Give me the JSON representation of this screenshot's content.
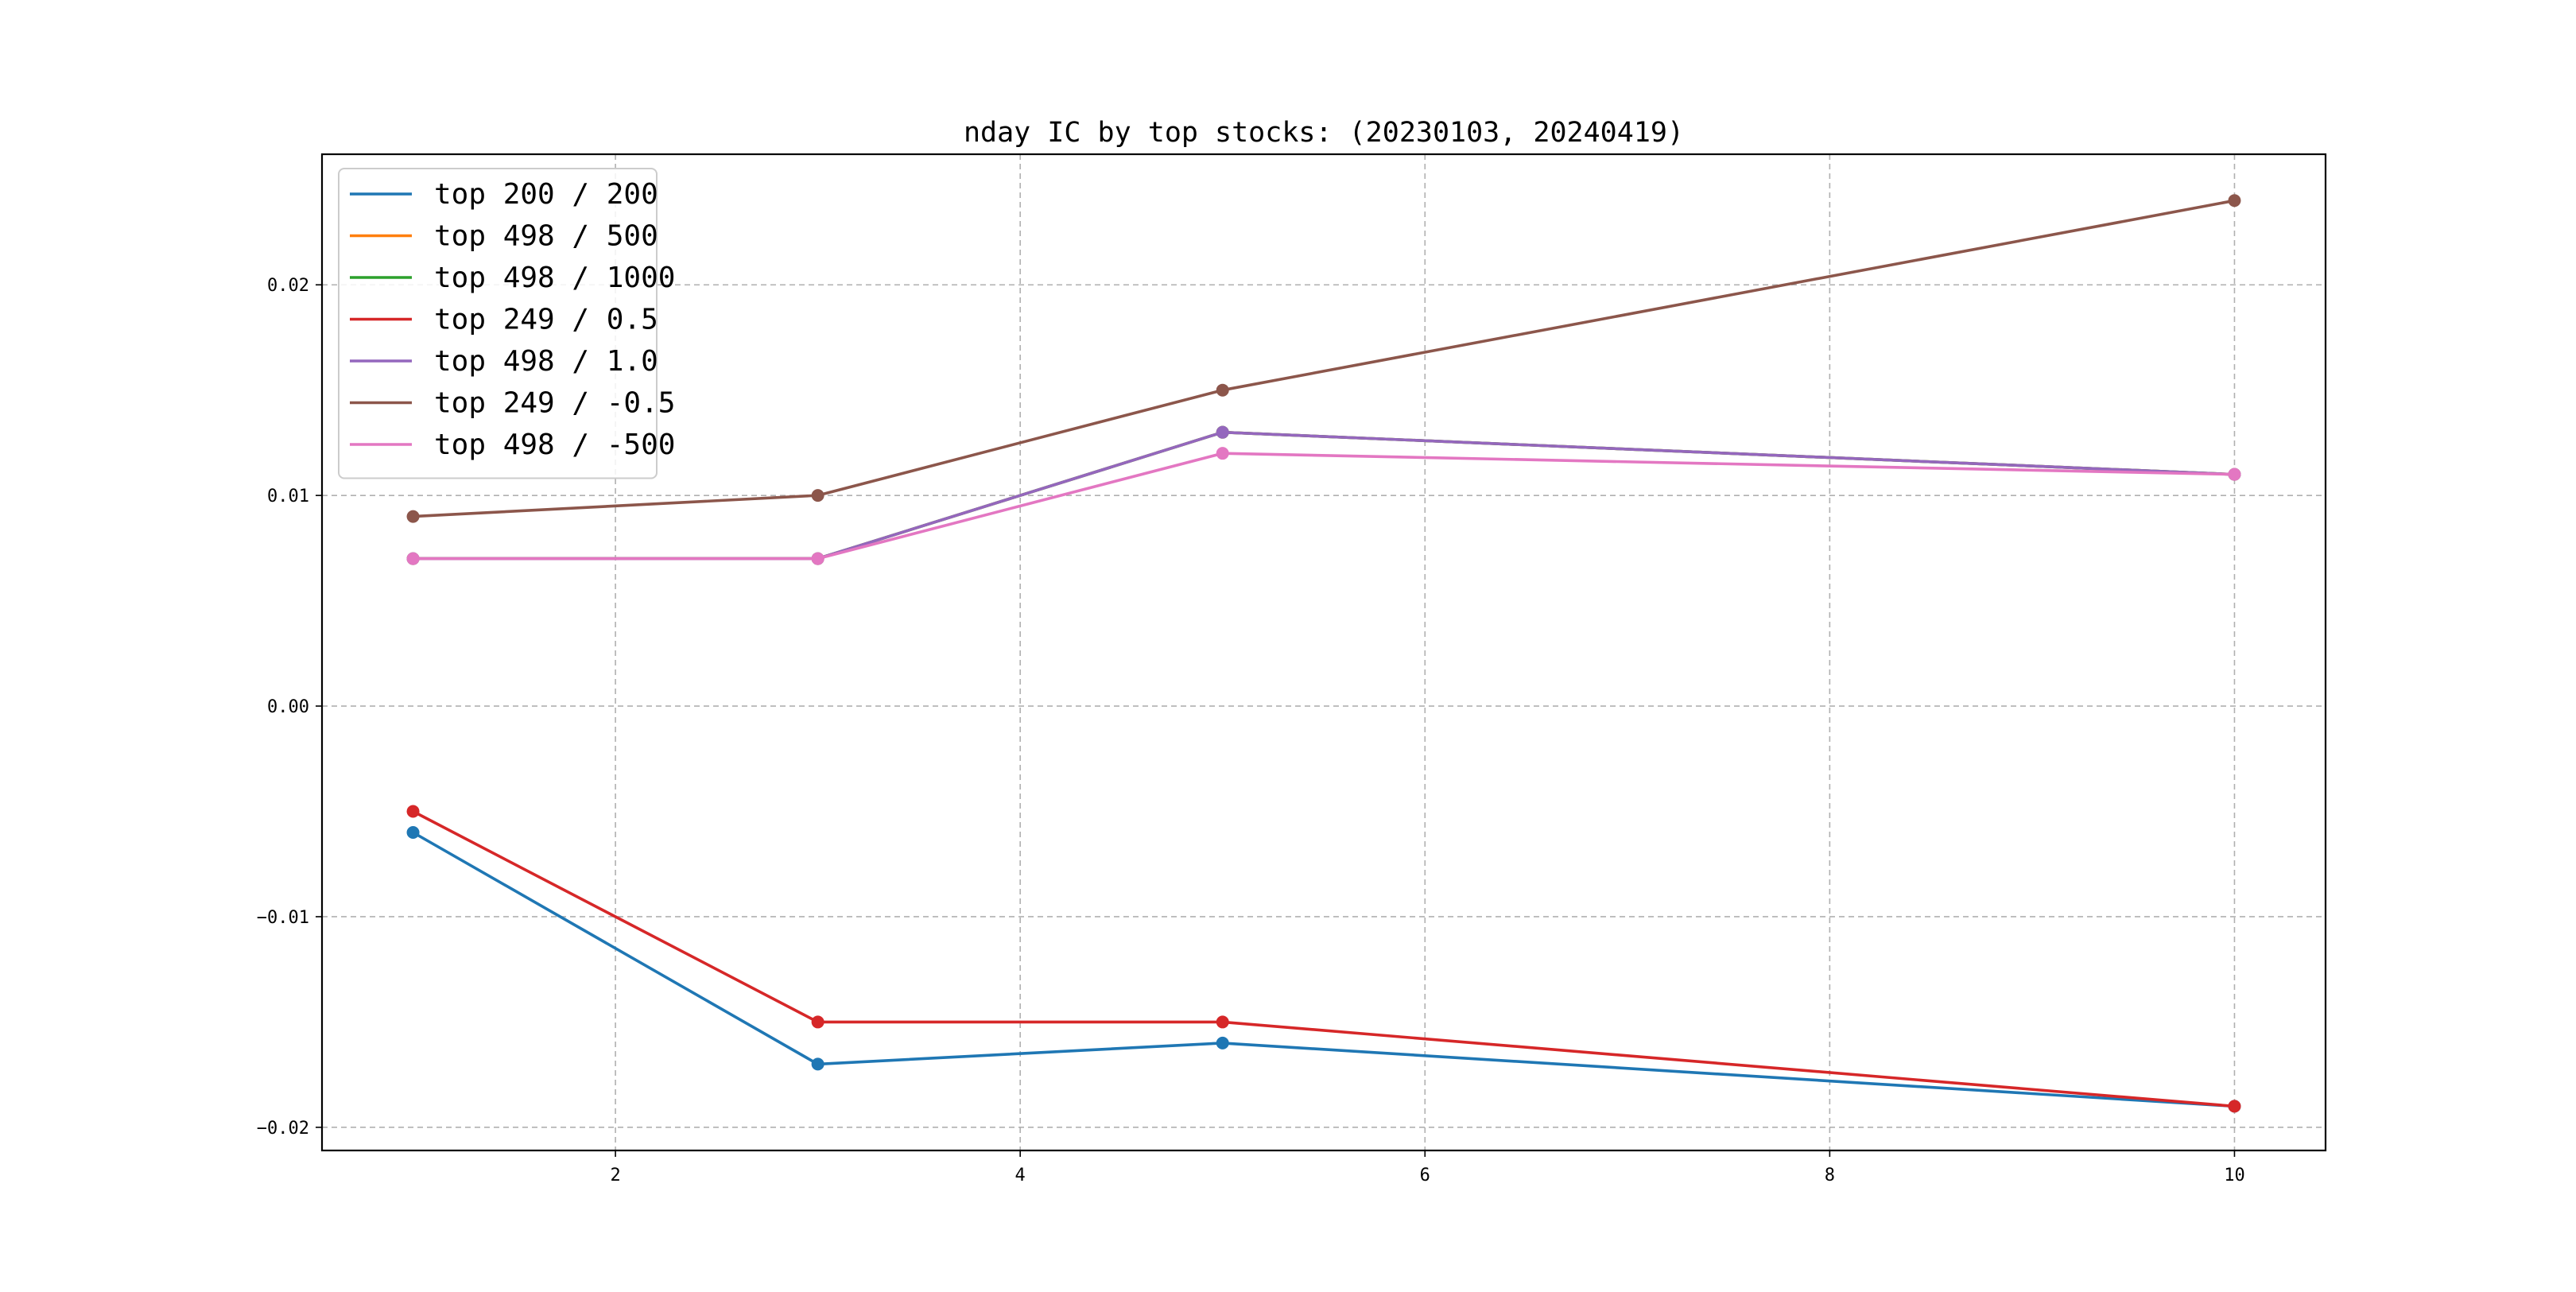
{
  "chart_data": {
    "type": "line",
    "title": "nday IC by top stocks: (20230103, 20240419)",
    "xlabel": "",
    "ylabel": "",
    "x": [
      1,
      3,
      5,
      10
    ],
    "xlim": [
      0.55,
      10.45
    ],
    "ylim": [
      -0.0211,
      0.0262
    ],
    "xticks": [
      2,
      4,
      6,
      8,
      10
    ],
    "xtick_labels": [
      "2",
      "4",
      "6",
      "8",
      "10"
    ],
    "yticks": [
      -0.02,
      -0.01,
      0.0,
      0.01,
      0.02
    ],
    "ytick_labels": [
      "−0.02",
      "−0.01",
      "0.00",
      "0.01",
      "0.02"
    ],
    "grid": true,
    "legend_position": "top-left",
    "series": [
      {
        "name": "top 200 / 200",
        "color": "#1f77b4",
        "values": [
          -0.006,
          -0.017,
          -0.016,
          -0.019
        ]
      },
      {
        "name": "top 498 / 500",
        "color": "#ff7f0e",
        "values": [
          0.007,
          0.007,
          0.013,
          0.011
        ]
      },
      {
        "name": "top 498 / 1000",
        "color": "#2ca02c",
        "values": [
          0.007,
          0.007,
          0.013,
          0.011
        ]
      },
      {
        "name": "top 249 / 0.5",
        "color": "#d62728",
        "values": [
          -0.005,
          -0.015,
          -0.015,
          -0.019
        ]
      },
      {
        "name": "top 498 / 1.0",
        "color": "#9467bd",
        "values": [
          0.007,
          0.007,
          0.013,
          0.011
        ]
      },
      {
        "name": "top 249 / -0.5",
        "color": "#8c564b",
        "values": [
          0.009,
          0.01,
          0.015,
          0.024
        ]
      },
      {
        "name": "top 498 / -500",
        "color": "#e377c2",
        "values": [
          0.007,
          0.007,
          0.012,
          0.011
        ]
      }
    ]
  }
}
